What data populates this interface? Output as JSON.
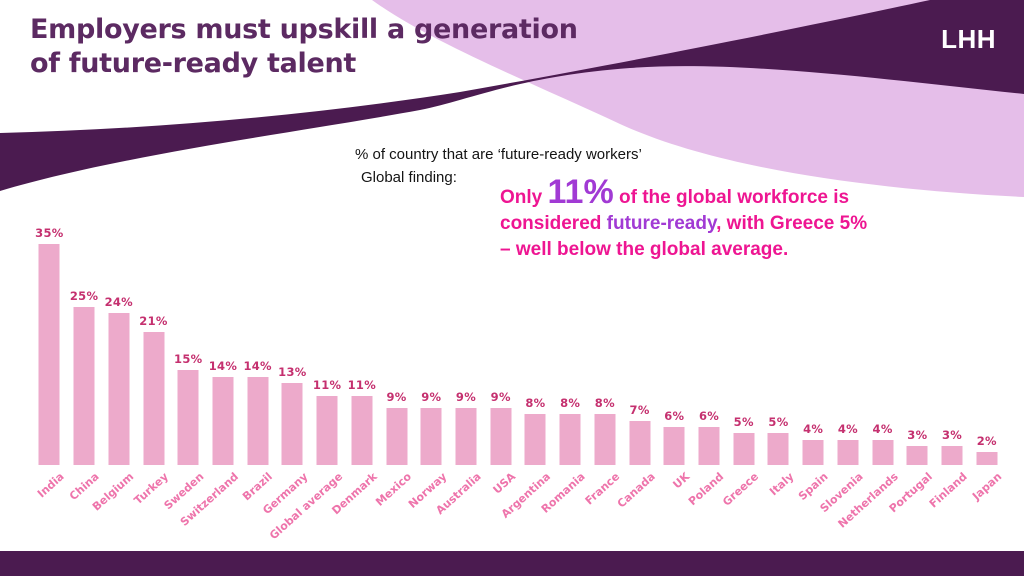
{
  "header": {
    "title_line1": "Employers must upskill a generation",
    "title_line2": "of future-ready talent",
    "logo": "LHH"
  },
  "subtitle": {
    "chart_heading": "% of country that are ‘future-ready workers’",
    "finding_label": "Global finding:"
  },
  "finding": {
    "part1": "Only ",
    "stat": "11%",
    "part2": " of the global workforce is considered ",
    "highlight": "future-ready",
    "part3": ", with Greece 5% – well below the global average."
  },
  "colors": {
    "purple_dark": "#4b1b50",
    "title_purple": "#5c2a62",
    "lavender": "#e5bee9",
    "magenta": "#ee1592",
    "violet": "#a13ad4",
    "bar_pink": "#edaacb",
    "value_label": "#c5306f",
    "category_label": "#ee74ab"
  },
  "chart_data": {
    "type": "bar",
    "title": "% of country that are ‘future-ready workers’",
    "xlabel": "",
    "ylabel": "",
    "unit_suffix": "%",
    "ylim": [
      0,
      38
    ],
    "grid": false,
    "legend": "none",
    "categories": [
      "India",
      "China",
      "Belgium",
      "Turkey",
      "Sweden",
      "Switzerland",
      "Brazil",
      "Germany",
      "Global average",
      "Denmark",
      "Mexico",
      "Norway",
      "Australia",
      "USA",
      "Argentina",
      "Romania",
      "France",
      "Canada",
      "UK",
      "Poland",
      "Greece",
      "Italy",
      "Spain",
      "Slovenia",
      "Netherlands",
      "Portugal",
      "Finland",
      "Japan"
    ],
    "values": [
      35,
      25,
      24,
      21,
      15,
      14,
      14,
      13,
      11,
      11,
      9,
      9,
      9,
      9,
      8,
      8,
      8,
      7,
      6,
      6,
      5,
      5,
      4,
      4,
      4,
      3,
      3,
      2
    ]
  }
}
